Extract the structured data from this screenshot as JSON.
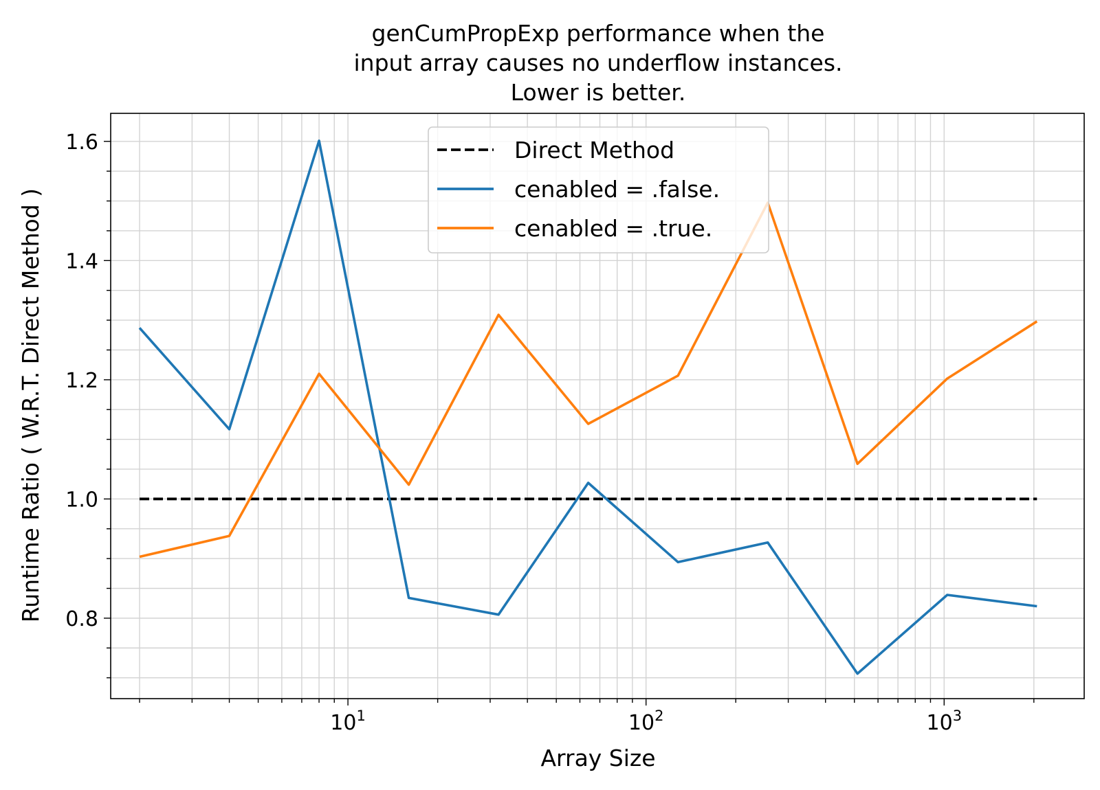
{
  "chart_data": {
    "type": "line",
    "title": [
      "genCumPropExp performance when the",
      "input array causes no underflow instances.",
      "Lower is better."
    ],
    "xlabel": "Array Size",
    "ylabel": "Runtime Ratio ( W.R.T. Direct Method )",
    "xscale": "log",
    "xlim": [
      1.6,
      2950
    ],
    "ylim": [
      0.665,
      1.647
    ],
    "grid": "major and minor",
    "legend_position": "top-center",
    "x": [
      2,
      4,
      8,
      16,
      32,
      64,
      128,
      256,
      512,
      1024,
      2048
    ],
    "x_ticks": [
      {
        "value": 10,
        "base": "10",
        "exp": "1"
      },
      {
        "value": 100,
        "base": "10",
        "exp": "2"
      },
      {
        "value": 1000,
        "base": "10",
        "exp": "3"
      }
    ],
    "y_ticks": [
      {
        "value": 0.8,
        "label": "0.8"
      },
      {
        "value": 1.0,
        "label": "1.0"
      },
      {
        "value": 1.2,
        "label": "1.2"
      },
      {
        "value": 1.4,
        "label": "1.4"
      },
      {
        "value": 1.6,
        "label": "1.6"
      }
    ],
    "series": [
      {
        "name": "Direct Method",
        "color": "#000000",
        "dash": true,
        "values": [
          1.0,
          1.0,
          1.0,
          1.0,
          1.0,
          1.0,
          1.0,
          1.0,
          1.0,
          1.0,
          1.0
        ]
      },
      {
        "name": "cenabled = .false.",
        "color": "#1f77b4",
        "dash": false,
        "values": [
          1.287,
          1.117,
          1.601,
          0.834,
          0.806,
          1.027,
          0.894,
          0.927,
          0.707,
          0.839,
          0.82
        ]
      },
      {
        "name": "cenabled = .true.",
        "color": "#ff7f0e",
        "dash": false,
        "values": [
          0.903,
          0.938,
          1.21,
          1.024,
          1.309,
          1.126,
          1.207,
          1.497,
          1.059,
          1.202,
          1.298
        ]
      }
    ]
  }
}
